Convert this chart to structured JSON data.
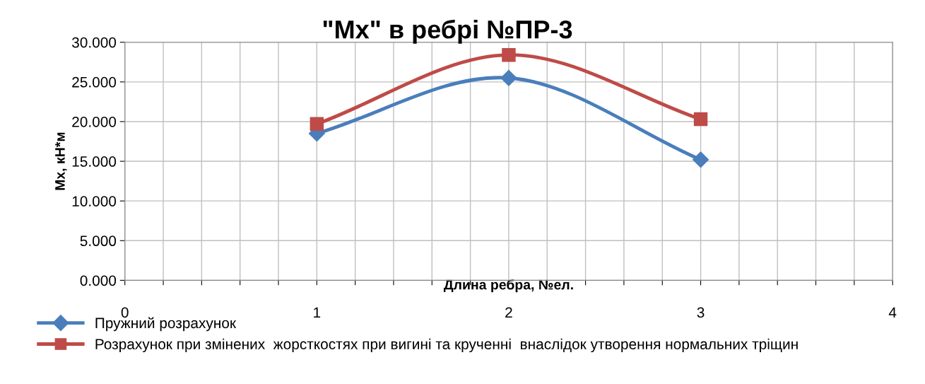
{
  "chart_data": {
    "type": "line",
    "title": "\"Mx\" в ребрі №ПР-3",
    "xlabel": "Длина ребра, №ел.",
    "ylabel": "Мх, кН*м",
    "x": [
      1,
      2,
      3
    ],
    "series": [
      {
        "name": "Пружний розрахунок",
        "color": "#4a7ebb",
        "marker": "diamond",
        "values": [
          18.5,
          25.5,
          15.2
        ]
      },
      {
        "name": "Розрахунок при змінених  жорсткостях при вигині та крученні  внаслідок утворення нормальних тріщин",
        "color": "#be4b48",
        "marker": "square",
        "values": [
          19.7,
          28.4,
          20.3
        ]
      }
    ],
    "xlim": [
      0,
      4
    ],
    "xticks": [
      0,
      {
        "value": 0.2,
        "label": null
      },
      {
        "value": 0.4,
        "label": null
      },
      {
        "value": 0.6,
        "label": null
      },
      {
        "value": 0.8,
        "label": null
      },
      1,
      {
        "value": 1.2,
        "label": null
      },
      {
        "value": 1.4,
        "label": null
      },
      {
        "value": 1.6,
        "label": null
      },
      {
        "value": 1.8,
        "label": null
      },
      2,
      {
        "value": 2.2,
        "label": null
      },
      {
        "value": 2.4,
        "label": null
      },
      {
        "value": 2.6,
        "label": null
      },
      {
        "value": 2.8,
        "label": null
      },
      3,
      {
        "value": 3.2,
        "label": null
      },
      {
        "value": 3.4,
        "label": null
      },
      {
        "value": 3.6,
        "label": null
      },
      {
        "value": 3.8,
        "label": null
      },
      4
    ],
    "ylim": [
      0,
      30
    ],
    "yticks": [
      {
        "value": 0,
        "label": "0.000"
      },
      {
        "value": 5,
        "label": "5.000"
      },
      {
        "value": 10,
        "label": "10.000"
      },
      {
        "value": 15,
        "label": "15.000"
      },
      {
        "value": 20,
        "label": "20.000"
      },
      {
        "value": 25,
        "label": "25.000"
      },
      {
        "value": 30,
        "label": "30.000"
      }
    ],
    "grid": true,
    "legend": "bottom",
    "line_style": "solid"
  }
}
